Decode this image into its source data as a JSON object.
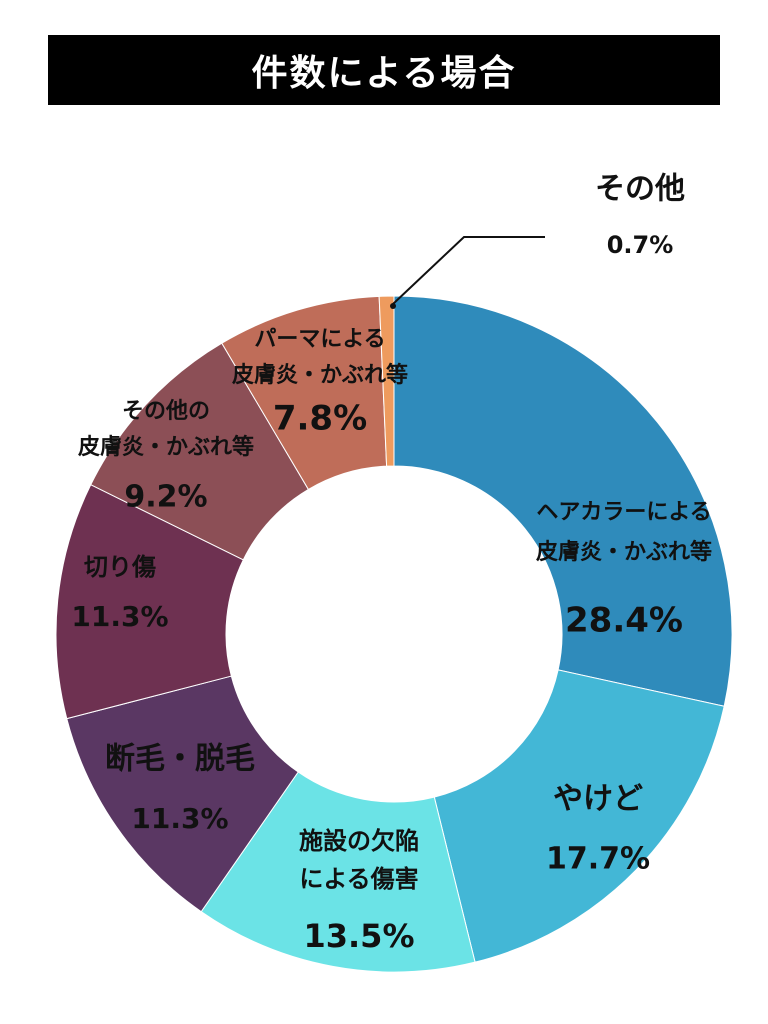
{
  "title": "件数による場合",
  "chart_data": {
    "type": "pie",
    "title": "件数による場合",
    "unit": "%",
    "slices": [
      {
        "label_lines": [
          "ヘアカラーによる",
          "皮膚炎・かぶれ等"
        ],
        "value": 28.4,
        "value_label": "28.4%",
        "color": "#2f8bbb"
      },
      {
        "label_lines": [
          "やけど"
        ],
        "value": 17.7,
        "value_label": "17.7%",
        "color": "#43b7d6"
      },
      {
        "label_lines": [
          "施設の欠陥",
          "による傷害"
        ],
        "value": 13.5,
        "value_label": "13.5%",
        "color": "#6be3e6"
      },
      {
        "label_lines": [
          "断毛・脱毛"
        ],
        "value": 11.3,
        "value_label": "11.3%",
        "color": "#5a3763"
      },
      {
        "label_lines": [
          "切り傷"
        ],
        "value": 11.3,
        "value_label": "11.3%",
        "color": "#6e3151"
      },
      {
        "label_lines": [
          "その他の",
          "皮膚炎・かぶれ等"
        ],
        "value": 9.2,
        "value_label": "9.2%",
        "color": "#8c4f56"
      },
      {
        "label_lines": [
          "パーマによる",
          "皮膚炎・かぶれ等"
        ],
        "value": 7.8,
        "value_label": "7.8%",
        "color": "#bf6d59"
      },
      {
        "label_lines": [
          "その他"
        ],
        "value": 0.7,
        "value_label": "0.7%",
        "color": "#ee9b5e"
      }
    ]
  }
}
